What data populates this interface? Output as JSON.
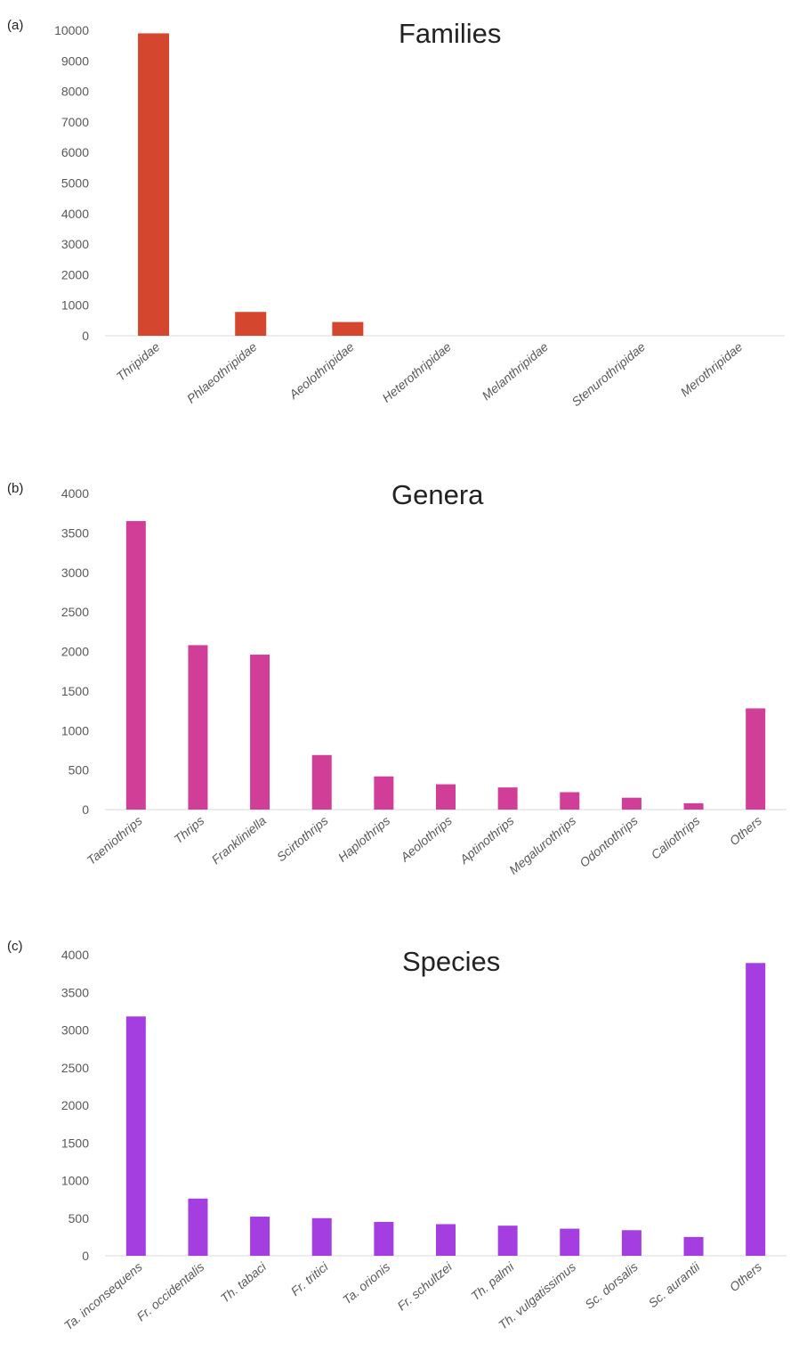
{
  "chart_data": [
    {
      "type": "bar",
      "panel_label": "(a)",
      "title": "Families",
      "categories": [
        "Thripidae",
        "Phlaeothripidae",
        "Aeolothripidae",
        "Heterothripidae",
        "Melanthripidae",
        "Stenurothripidae",
        "Merothripidae"
      ],
      "values": [
        9900,
        780,
        450,
        4,
        3,
        2,
        1
      ],
      "ylim": [
        0,
        10000
      ],
      "yticks": [
        0,
        1000,
        2000,
        3000,
        4000,
        5000,
        6000,
        7000,
        8000,
        9000,
        10000
      ],
      "color": "#d4462e",
      "grid": false
    },
    {
      "type": "bar",
      "panel_label": "(b)",
      "title": "Genera",
      "categories": [
        "Taeniothrips",
        "Thrips",
        "Frankliniella",
        "Scirtothrips",
        "Haplothrips",
        "Aeolothrips",
        "Aptinothrips",
        "Megalurothrips",
        "Odontothrips",
        "Caliothrips",
        "Others"
      ],
      "values": [
        3650,
        2080,
        1960,
        690,
        420,
        320,
        280,
        220,
        150,
        80,
        1280
      ],
      "ylim": [
        0,
        4000
      ],
      "yticks": [
        0,
        500,
        1000,
        1500,
        2000,
        2500,
        3000,
        3500,
        4000
      ],
      "color": "#d03e97",
      "grid": false
    },
    {
      "type": "bar",
      "panel_label": "(c)",
      "title": "Species",
      "categories": [
        "Ta. inconsequens",
        "Fr. occidentalis",
        "Th. tabaci",
        "Fr. tritici",
        "Ta. orionis",
        "Fr. schultzei",
        "Th. palmi",
        "Th. vulgatissimus",
        "Sc. dorsalis",
        "Sc. aurantii",
        "Others"
      ],
      "values": [
        3180,
        760,
        520,
        500,
        450,
        420,
        400,
        360,
        340,
        250,
        3890
      ],
      "ylim": [
        0,
        4000
      ],
      "yticks": [
        0,
        500,
        1000,
        1500,
        2000,
        2500,
        3000,
        3500,
        4000
      ],
      "color": "#a43ee0",
      "grid": false
    }
  ]
}
